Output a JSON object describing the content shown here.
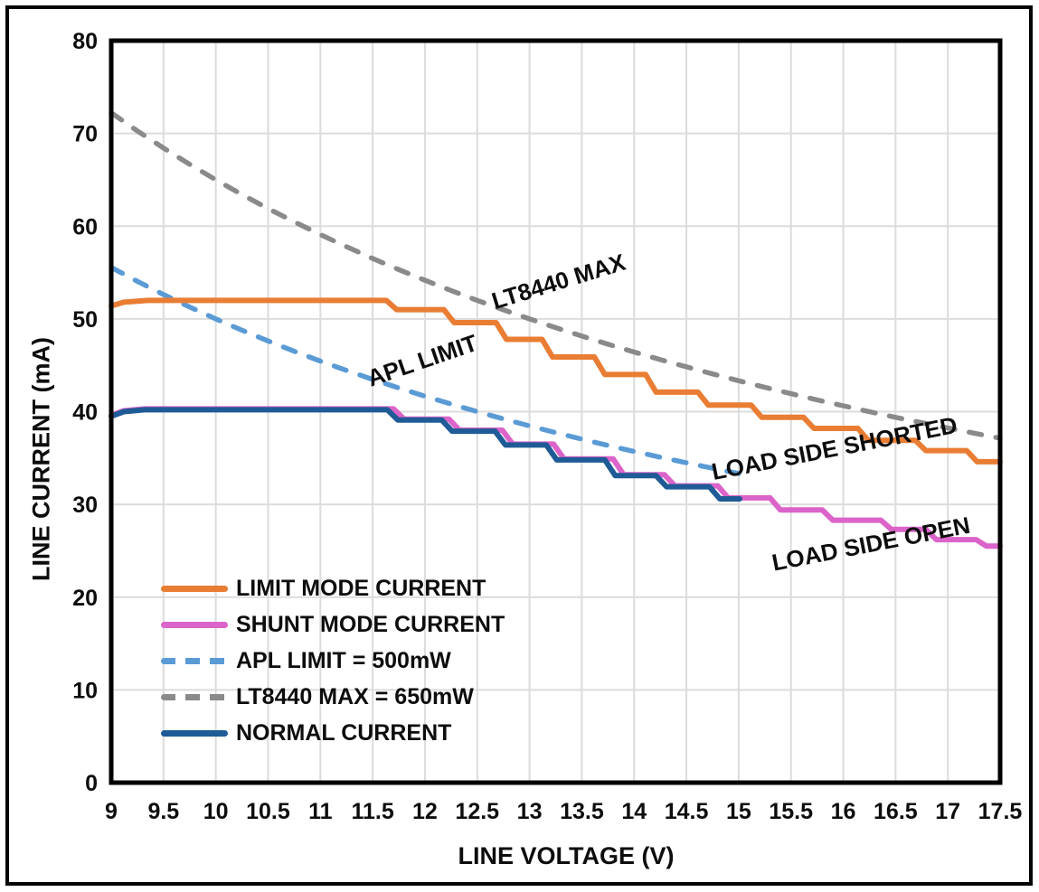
{
  "chart_data": {
    "type": "line",
    "title": "",
    "xlabel": "LINE VOLTAGE (V)",
    "ylabel": "LINE CURRENT (mA)",
    "xlim": [
      9,
      17.5
    ],
    "ylim": [
      0,
      80
    ],
    "x_ticks": [
      9,
      9.5,
      10,
      10.5,
      11,
      11.5,
      12,
      12.5,
      13,
      13.5,
      14,
      14.5,
      15,
      15.5,
      16,
      16.5,
      17,
      17.5
    ],
    "y_ticks": [
      0,
      10,
      20,
      30,
      40,
      50,
      60,
      70,
      80
    ],
    "grid": true,
    "grid_color": "#DCDCDC",
    "plot_border_color": "#000000",
    "legend_position": "inside-lower-left",
    "draw_order": [
      3,
      2,
      0,
      1,
      4
    ],
    "series": [
      {
        "name": "LIMIT MODE CURRENT",
        "color": "#E97D33",
        "dash": "solid",
        "annotation_on_chart": "LOAD SIDE SHORTED",
        "points": [
          [
            9,
            51.4
          ],
          [
            9.12,
            51.8
          ],
          [
            9.35,
            52
          ],
          [
            11.63,
            52
          ],
          [
            11.73,
            51
          ],
          [
            12.18,
            51
          ],
          [
            12.28,
            49.6
          ],
          [
            12.68,
            49.6
          ],
          [
            12.78,
            47.8
          ],
          [
            13.12,
            47.8
          ],
          [
            13.22,
            45.9
          ],
          [
            13.62,
            45.9
          ],
          [
            13.72,
            44
          ],
          [
            14.11,
            44
          ],
          [
            14.21,
            42.1
          ],
          [
            14.61,
            42.1
          ],
          [
            14.71,
            40.7
          ],
          [
            15.12,
            40.7
          ],
          [
            15.22,
            39.4
          ],
          [
            15.62,
            39.4
          ],
          [
            15.72,
            38.2
          ],
          [
            16.14,
            38.2
          ],
          [
            16.24,
            36.9
          ],
          [
            16.69,
            36.9
          ],
          [
            16.79,
            35.8
          ],
          [
            17.18,
            35.8
          ],
          [
            17.28,
            34.6
          ],
          [
            17.5,
            34.6
          ]
        ]
      },
      {
        "name": "SHUNT MODE CURRENT",
        "color": "#DB63C9",
        "dash": "solid",
        "annotation_on_chart": "LOAD SIDE OPEN",
        "points": [
          [
            9,
            39.6
          ],
          [
            9.12,
            40.1
          ],
          [
            9.32,
            40.3
          ],
          [
            11.7,
            40.3
          ],
          [
            11.8,
            39.2
          ],
          [
            12.23,
            39.2
          ],
          [
            12.33,
            38
          ],
          [
            12.74,
            38
          ],
          [
            12.84,
            36.5
          ],
          [
            13.23,
            36.5
          ],
          [
            13.33,
            34.9
          ],
          [
            13.8,
            34.9
          ],
          [
            13.9,
            33.2
          ],
          [
            14.29,
            33.2
          ],
          [
            14.39,
            32
          ],
          [
            14.8,
            32
          ],
          [
            14.9,
            30.7
          ],
          [
            15.3,
            30.7
          ],
          [
            15.4,
            29.4
          ],
          [
            15.8,
            29.4
          ],
          [
            15.9,
            28.3
          ],
          [
            16.36,
            28.3
          ],
          [
            16.46,
            27.3
          ],
          [
            16.79,
            27.3
          ],
          [
            16.89,
            26.2
          ],
          [
            17.27,
            26.2
          ],
          [
            17.37,
            25.5
          ],
          [
            17.5,
            25.5
          ]
        ]
      },
      {
        "name": "APL LIMIT = 500mW",
        "color": "#5B9BD5",
        "dash": "dashed",
        "annotation_on_chart": "APL LIMIT",
        "points": [
          [
            9,
            55.56
          ],
          [
            9.25,
            54.05
          ],
          [
            9.5,
            52.63
          ],
          [
            9.75,
            51.28
          ],
          [
            10,
            50
          ],
          [
            10.25,
            48.78
          ],
          [
            10.5,
            47.62
          ],
          [
            10.75,
            46.51
          ],
          [
            11,
            45.45
          ],
          [
            11.25,
            44.44
          ],
          [
            11.5,
            43.48
          ],
          [
            11.75,
            42.55
          ],
          [
            12,
            41.67
          ],
          [
            12.25,
            40.82
          ],
          [
            12.5,
            40
          ],
          [
            12.75,
            39.22
          ],
          [
            13,
            38.46
          ],
          [
            13.25,
            37.74
          ],
          [
            13.5,
            37.04
          ],
          [
            13.75,
            36.36
          ],
          [
            14,
            35.71
          ],
          [
            14.25,
            35.09
          ],
          [
            14.5,
            34.48
          ],
          [
            14.75,
            33.9
          ],
          [
            15,
            33.33
          ]
        ]
      },
      {
        "name": "LT8440 MAX = 650mW",
        "color": "#8A8A8A",
        "dash": "dashed",
        "annotation_on_chart": "LT8440 MAX",
        "points": [
          [
            9,
            72.22
          ],
          [
            9.25,
            70.27
          ],
          [
            9.5,
            68.42
          ],
          [
            9.75,
            66.67
          ],
          [
            10,
            65
          ],
          [
            10.25,
            63.41
          ],
          [
            10.5,
            61.9
          ],
          [
            10.75,
            60.47
          ],
          [
            11,
            59.09
          ],
          [
            11.25,
            57.78
          ],
          [
            11.5,
            56.52
          ],
          [
            11.75,
            55.32
          ],
          [
            12,
            54.17
          ],
          [
            12.25,
            53.06
          ],
          [
            12.5,
            52
          ],
          [
            12.75,
            50.98
          ],
          [
            13,
            50
          ],
          [
            13.25,
            49.06
          ],
          [
            13.5,
            48.15
          ],
          [
            13.75,
            47.27
          ],
          [
            14,
            46.43
          ],
          [
            14.25,
            45.61
          ],
          [
            14.5,
            44.83
          ],
          [
            14.75,
            44.07
          ],
          [
            15,
            43.33
          ],
          [
            15.25,
            42.62
          ],
          [
            15.5,
            41.94
          ],
          [
            15.75,
            41.27
          ],
          [
            16,
            40.63
          ],
          [
            16.25,
            40
          ],
          [
            16.5,
            39.39
          ],
          [
            16.75,
            38.81
          ],
          [
            17,
            38.24
          ],
          [
            17.25,
            37.68
          ],
          [
            17.5,
            37.14
          ]
        ]
      },
      {
        "name": "NORMAL CURRENT",
        "color": "#1F5B96",
        "dash": "solid",
        "annotation_on_chart": "",
        "points": [
          [
            9,
            39.5
          ],
          [
            9.12,
            40
          ],
          [
            9.32,
            40.2
          ],
          [
            11.64,
            40.2
          ],
          [
            11.74,
            39.1
          ],
          [
            12.16,
            39.1
          ],
          [
            12.26,
            37.9
          ],
          [
            12.67,
            37.9
          ],
          [
            12.77,
            36.4
          ],
          [
            13.16,
            36.4
          ],
          [
            13.26,
            34.8
          ],
          [
            13.72,
            34.8
          ],
          [
            13.82,
            33.1
          ],
          [
            14.21,
            33.1
          ],
          [
            14.31,
            31.9
          ],
          [
            14.72,
            31.9
          ],
          [
            14.82,
            30.6
          ],
          [
            15.01,
            30.6
          ]
        ]
      }
    ],
    "annotations": [
      {
        "text": "LT8440 MAX",
        "x": 13.3,
        "y": 53.2,
        "angle": -17
      },
      {
        "text": "APL LIMIT",
        "x": 12.0,
        "y": 44.7,
        "angle": -19
      },
      {
        "text": "LOAD SIDE SHORTED",
        "x": 15.93,
        "y": 35.2,
        "angle": -11
      },
      {
        "text": "LOAD SIDE OPEN",
        "x": 16.28,
        "y": 24.9,
        "angle": -11
      }
    ]
  }
}
